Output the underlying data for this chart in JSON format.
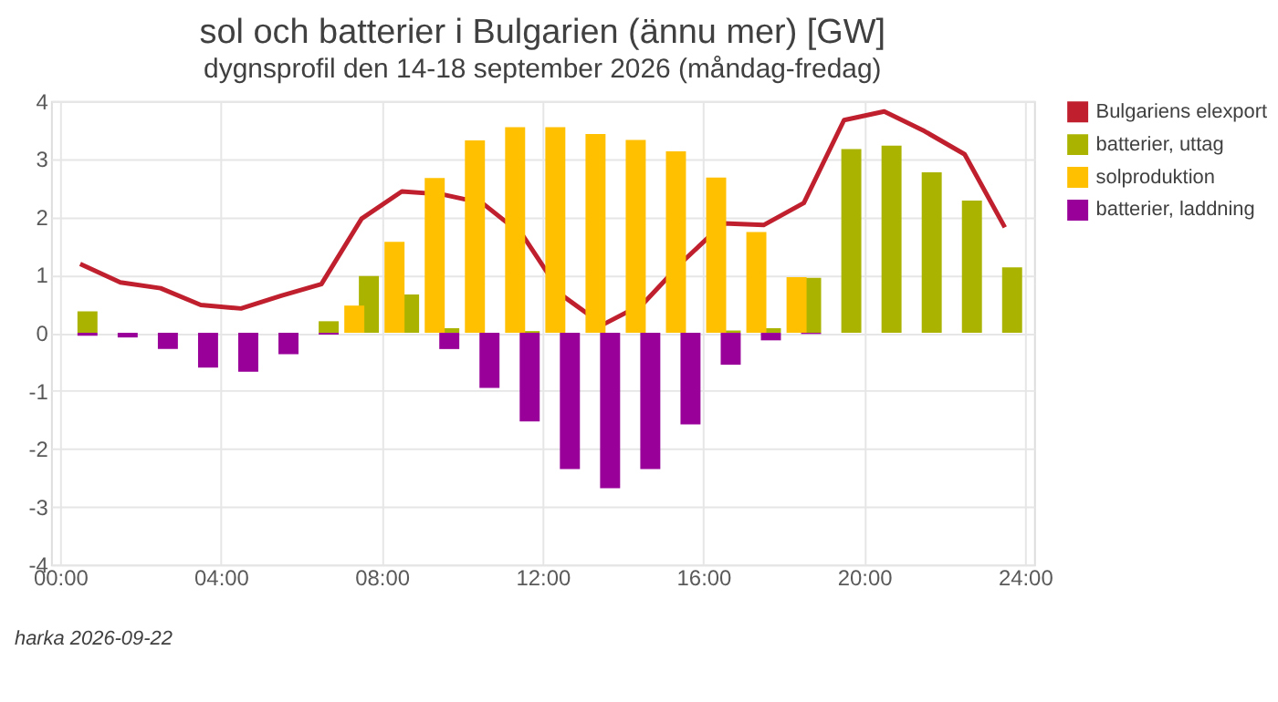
{
  "chart_data": {
    "type": "bar",
    "title": "sol och batterier i Bulgarien (ännu mer) [GW]",
    "subtitle": "dygnsprofil den 14-18 september 2026 (måndag-fredag)",
    "x": [
      0.5,
      1.5,
      2.5,
      3.5,
      4.5,
      5.5,
      6.5,
      7.5,
      8.5,
      9.5,
      10.5,
      11.5,
      12.5,
      13.5,
      14.5,
      15.5,
      16.5,
      17.5,
      18.5,
      19.5,
      20.5,
      21.5,
      22.5,
      23.5
    ],
    "series": [
      {
        "name": "Bulgariens elexport",
        "type": "line",
        "color": "#c0202e",
        "values": [
          1.19,
          0.87,
          0.77,
          0.48,
          0.42,
          0.64,
          0.84,
          1.97,
          2.44,
          2.39,
          2.24,
          1.69,
          0.64,
          0.14,
          0.5,
          1.24,
          1.89,
          1.86,
          2.24,
          3.67,
          3.82,
          3.48,
          3.08,
          1.82
        ]
      },
      {
        "name": "batterier, uttag",
        "color": "#aab400",
        "values": [
          0.37,
          0,
          0,
          0,
          0,
          0,
          0.2,
          0.98,
          0.66,
          0.08,
          0,
          0.03,
          0,
          0,
          0,
          0,
          0.04,
          0.08,
          0.95,
          3.17,
          3.23,
          2.77,
          2.28,
          1.13
        ]
      },
      {
        "name": "solproduktion",
        "color": "#ffc000",
        "values": [
          0,
          0,
          0,
          0,
          0,
          0,
          0,
          0.47,
          1.57,
          2.67,
          3.32,
          3.55,
          3.55,
          3.43,
          3.33,
          3.13,
          2.68,
          1.74,
          0.96,
          0,
          0,
          0,
          0,
          0
        ]
      },
      {
        "name": "batterier, laddning",
        "color": "#990099",
        "values": [
          -0.05,
          -0.08,
          -0.28,
          -0.6,
          -0.67,
          -0.37,
          -0.03,
          0,
          0,
          -0.28,
          -0.95,
          -1.53,
          -2.35,
          -2.68,
          -2.35,
          -1.58,
          -0.55,
          -0.13,
          -0.02,
          0,
          0,
          0,
          0,
          0
        ]
      }
    ],
    "xlim": [
      0,
      24
    ],
    "xticks": [
      {
        "value": 0,
        "label": "00:00"
      },
      {
        "value": 4,
        "label": "04:00"
      },
      {
        "value": 8,
        "label": "08:00"
      },
      {
        "value": 12,
        "label": "12:00"
      },
      {
        "value": 16,
        "label": "16:00"
      },
      {
        "value": 20,
        "label": "20:00"
      },
      {
        "value": 24,
        "label": "24:00"
      }
    ],
    "ylim": [
      -4,
      4
    ],
    "yticks": [
      -4,
      -3,
      -2,
      -1,
      0,
      1,
      2,
      3,
      4
    ],
    "grid": true,
    "legend": "right",
    "marker": "none",
    "line_style": "solid",
    "annotations": [
      "harka 2026-09-22"
    ]
  }
}
